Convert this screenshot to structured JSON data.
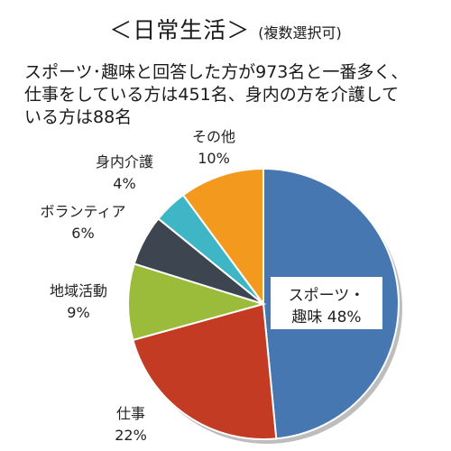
{
  "title": "＜日常生活＞",
  "subtitle": "(複数選択可)",
  "description": [
    "スポーツ･趣味と回答した方が973名と一番多く、",
    "仕事をしている方は451名、身内の方を介護して",
    "いる方は88名"
  ],
  "chart_data": {
    "type": "pie",
    "slices": [
      {
        "label_lines": [
          "スポーツ・",
          "趣味 48%"
        ],
        "value": 48,
        "color": "#4677b0"
      },
      {
        "label_lines": [
          "仕事",
          "22%"
        ],
        "value": 22,
        "color": "#c23b22"
      },
      {
        "label_lines": [
          "地域活動",
          "9%"
        ],
        "value": 9,
        "color": "#9bbb3a"
      },
      {
        "label_lines": [
          "ボランティア",
          "6%"
        ],
        "value": 6,
        "color": "#3d4550"
      },
      {
        "label_lines": [
          "身内介護",
          "4%"
        ],
        "value": 4,
        "color": "#3fb6c6"
      },
      {
        "label_lines": [
          "その他",
          "10%"
        ],
        "value": 10,
        "color": "#f39a1e"
      }
    ]
  }
}
